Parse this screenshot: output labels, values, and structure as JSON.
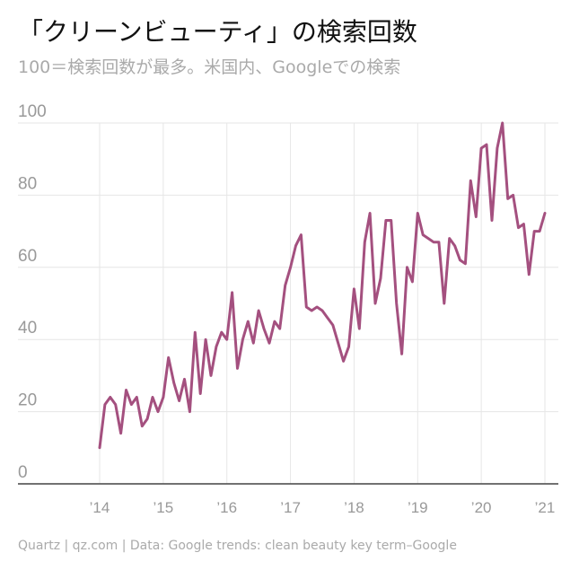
{
  "chart_data": {
    "type": "line",
    "title": "「クリーンビューティ」の検索回数",
    "subtitle": "100＝検索回数が最多。米国内、Googleでの検索",
    "source": "Quartz | qz.com | Data: Google trends: clean beauty key term–Google",
    "ylim": [
      0,
      100
    ],
    "y_ticks": [
      "0",
      "20",
      "40",
      "60",
      "80",
      "100"
    ],
    "x_ticks": [
      {
        "label": "’14",
        "x": 2014.0
      },
      {
        "label": "’15",
        "x": 2015.0
      },
      {
        "label": "’16",
        "x": 2016.0
      },
      {
        "label": "’17",
        "x": 2017.0
      },
      {
        "label": "’18",
        "x": 2018.0
      },
      {
        "label": "’19",
        "x": 2019.0
      },
      {
        "label": "’20",
        "x": 2020.0
      },
      {
        "label": "’21",
        "x": 2021.0
      }
    ],
    "grid": true,
    "line_color": "#a4507f",
    "series": [
      {
        "x": [
          2014.0,
          2014.083,
          2014.167,
          2014.25,
          2014.333,
          2014.417,
          2014.5,
          2014.583,
          2014.667,
          2014.75,
          2014.833,
          2014.917,
          2015.0,
          2015.083,
          2015.167,
          2015.25,
          2015.333,
          2015.417,
          2015.5,
          2015.583,
          2015.667,
          2015.75,
          2015.833,
          2015.917,
          2016.0,
          2016.083,
          2016.167,
          2016.25,
          2016.333,
          2016.417,
          2016.5,
          2016.583,
          2016.667,
          2016.75,
          2016.833,
          2016.917,
          2017.0,
          2017.083,
          2017.167,
          2017.25,
          2017.333,
          2017.417,
          2017.5,
          2017.583,
          2017.667,
          2017.75,
          2017.833,
          2017.917,
          2018.0,
          2018.083,
          2018.167,
          2018.25,
          2018.333,
          2018.417,
          2018.5,
          2018.583,
          2018.667,
          2018.75,
          2018.833,
          2018.917,
          2019.0,
          2019.083,
          2019.167,
          2019.25,
          2019.333,
          2019.417,
          2019.5,
          2019.583,
          2019.667,
          2019.75,
          2019.833,
          2019.917,
          2020.0,
          2020.083,
          2020.167,
          2020.25,
          2020.333,
          2020.417,
          2020.5,
          2020.583,
          2020.667,
          2020.75,
          2020.833,
          2020.917,
          2021.0
        ],
        "y": [
          10,
          22,
          24,
          22,
          14,
          26,
          22,
          24,
          16,
          18,
          24,
          20,
          24,
          35,
          28,
          23,
          29,
          20,
          42,
          25,
          40,
          30,
          38,
          42,
          40,
          53,
          32,
          40,
          45,
          39,
          48,
          43,
          39,
          45,
          43,
          55,
          60,
          66,
          69,
          49,
          48,
          49,
          48,
          46,
          44,
          39,
          34,
          38,
          54,
          43,
          67,
          75,
          50,
          57,
          73,
          73,
          50,
          36,
          60,
          56,
          75,
          69,
          68,
          67,
          67,
          50,
          68,
          66,
          62,
          61,
          84,
          74,
          93,
          94,
          73,
          93,
          100,
          79,
          80,
          71,
          72,
          58,
          70,
          70,
          75
        ]
      }
    ]
  }
}
